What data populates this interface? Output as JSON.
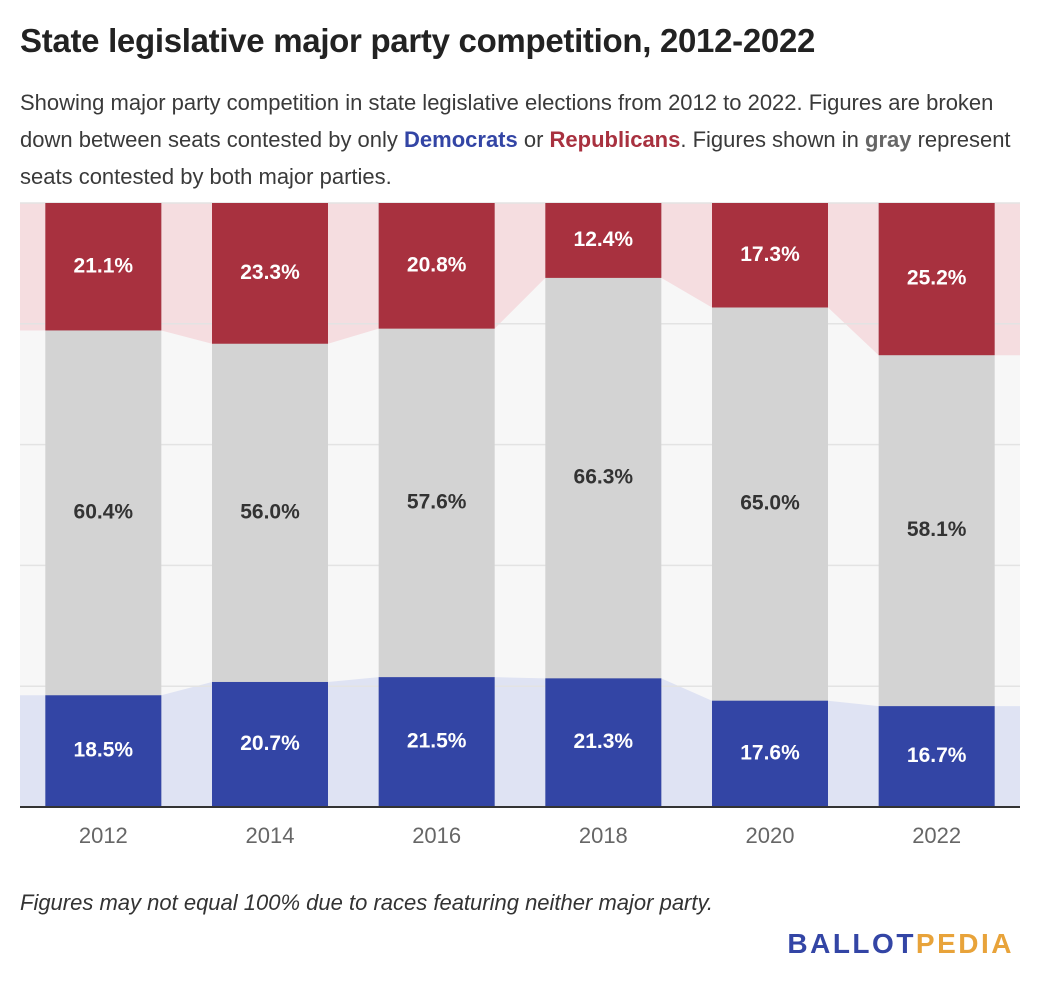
{
  "title": "State legislative major party competition, 2012-2022",
  "subtitle": {
    "part1": "Showing major party competition in state legislative elections from 2012 to 2022. Figures are broken down between seats contested by only ",
    "dem": "Democrats",
    "part2": " or ",
    "rep": "Republicans",
    "part3": ". Figures shown in ",
    "gray": "gray",
    "part4": " represent seats contested by both major parties."
  },
  "footnote": "Figures may not equal 100% due to races featuring neither major party.",
  "logo": {
    "part1": "BALLOT",
    "part2": "PEDIA"
  },
  "colors": {
    "democrats": "#3345a5",
    "republicans": "#a8313f",
    "both": "#d3d3d3",
    "dem_band": "#dfe3f3",
    "rep_band": "#f5dde0",
    "both_band": "#f7f7f7",
    "gridline": "#e3e3e3",
    "axis": "#333333"
  },
  "chart_data": {
    "type": "bar",
    "stacked": true,
    "orientation": "vertical",
    "categories": [
      "2012",
      "2014",
      "2016",
      "2018",
      "2020",
      "2022"
    ],
    "series": [
      {
        "name": "Democrats",
        "color": "#3345a5",
        "values": [
          18.5,
          20.7,
          21.5,
          21.3,
          17.6,
          16.7
        ],
        "labels": [
          "18.5%",
          "20.7%",
          "21.5%",
          "21.3%",
          "17.6%",
          "16.7%"
        ]
      },
      {
        "name": "gray",
        "color": "#d3d3d3",
        "values": [
          60.4,
          56.0,
          57.6,
          66.3,
          65.0,
          58.1
        ],
        "labels": [
          "60.4%",
          "56.0%",
          "57.6%",
          "66.3%",
          "65.0%",
          "58.1%"
        ]
      },
      {
        "name": "Republicans",
        "color": "#a8313f",
        "values": [
          21.1,
          23.3,
          20.8,
          12.4,
          17.3,
          25.2
        ],
        "labels": [
          "21.1%",
          "23.3%",
          "20.8%",
          "12.4%",
          "17.3%",
          "25.2%"
        ]
      }
    ],
    "ylim": [
      0,
      100
    ],
    "grid": true,
    "xlabel": "",
    "ylabel": ""
  }
}
